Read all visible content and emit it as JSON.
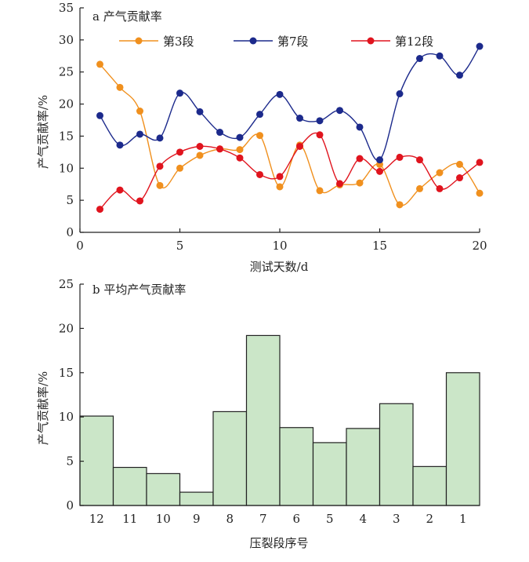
{
  "chart_data": [
    {
      "type": "line",
      "panel_label": "a 产气贡献率",
      "xlabel": "测试天数/d",
      "ylabel": "产气贡献率/%",
      "xlim": [
        0,
        20
      ],
      "ylim": [
        0,
        35
      ],
      "xticks": [
        0,
        5,
        10,
        15,
        20
      ],
      "yticks": [
        0,
        5,
        10,
        15,
        20,
        25,
        30,
        35
      ],
      "grid": false,
      "legend_position": "top",
      "x": [
        1,
        2,
        3,
        4,
        5,
        6,
        7,
        8,
        9,
        10,
        11,
        12,
        13,
        14,
        15,
        16,
        17,
        18,
        19,
        20
      ],
      "series": [
        {
          "name": "第3段",
          "color": "#f0901e",
          "values": [
            26.2,
            22.6,
            18.9,
            7.3,
            10.0,
            12.0,
            13.0,
            12.9,
            15.1,
            7.1,
            13.6,
            6.5,
            7.4,
            7.7,
            10.6,
            4.3,
            6.8,
            9.3,
            10.6,
            6.1
          ]
        },
        {
          "name": "第7段",
          "color": "#1c2a8c",
          "values": [
            18.2,
            13.6,
            15.3,
            14.7,
            21.7,
            18.8,
            15.6,
            14.8,
            18.4,
            21.5,
            17.8,
            17.4,
            19.0,
            16.4,
            11.3,
            21.6,
            27.1,
            27.5,
            24.5,
            29.0
          ]
        },
        {
          "name": "第12段",
          "color": "#e0141e",
          "values": [
            3.6,
            6.6,
            4.9,
            10.3,
            12.5,
            13.4,
            13.0,
            11.6,
            9.0,
            8.7,
            13.4,
            15.2,
            7.6,
            11.5,
            9.5,
            11.7,
            11.3,
            6.8,
            8.5,
            10.9
          ]
        }
      ]
    },
    {
      "type": "bar",
      "panel_label": "b 平均产气贡献率",
      "xlabel": "压裂段序号",
      "ylabel": "产气贡献率/%",
      "ylim": [
        0,
        25
      ],
      "yticks": [
        0,
        5,
        10,
        15,
        20,
        25
      ],
      "grid": false,
      "categories": [
        "12",
        "11",
        "10",
        "9",
        "8",
        "7",
        "6",
        "5",
        "4",
        "3",
        "2",
        "1"
      ],
      "values": [
        10.1,
        4.3,
        3.6,
        1.5,
        10.6,
        19.2,
        8.8,
        7.1,
        8.7,
        11.5,
        4.4,
        15.0
      ],
      "bar_color": "#cbe6c8"
    }
  ]
}
